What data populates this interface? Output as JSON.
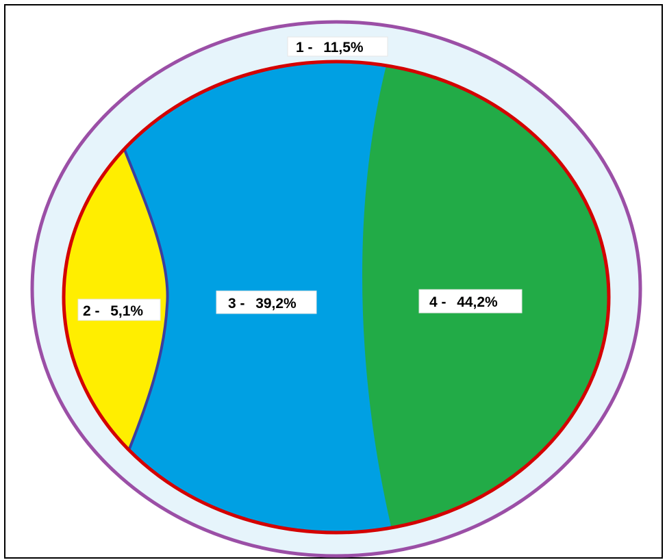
{
  "colors": {
    "outer_fill": "#e6f4fb",
    "outer_stroke": "#9b4fa6",
    "inner_stroke": "#d40000",
    "segment_2": "#ffee00",
    "segment_3": "#00a0e3",
    "segment_4": "#22ab47",
    "divider_2_3": "#3b3fa0"
  },
  "chart_data": {
    "type": "nested-ellipse",
    "segments": [
      {
        "id": "1",
        "value": 11.5,
        "label_prefix": "1 - ",
        "label_value": "11,5%"
      },
      {
        "id": "2",
        "value": 5.1,
        "label_prefix": "2 - ",
        "label_value": "5,1%"
      },
      {
        "id": "3",
        "value": 39.2,
        "label_prefix": "3 - ",
        "label_value": "39,2%"
      },
      {
        "id": "4",
        "value": 44.2,
        "label_prefix": "4 - ",
        "label_value": "44,2%"
      }
    ]
  }
}
